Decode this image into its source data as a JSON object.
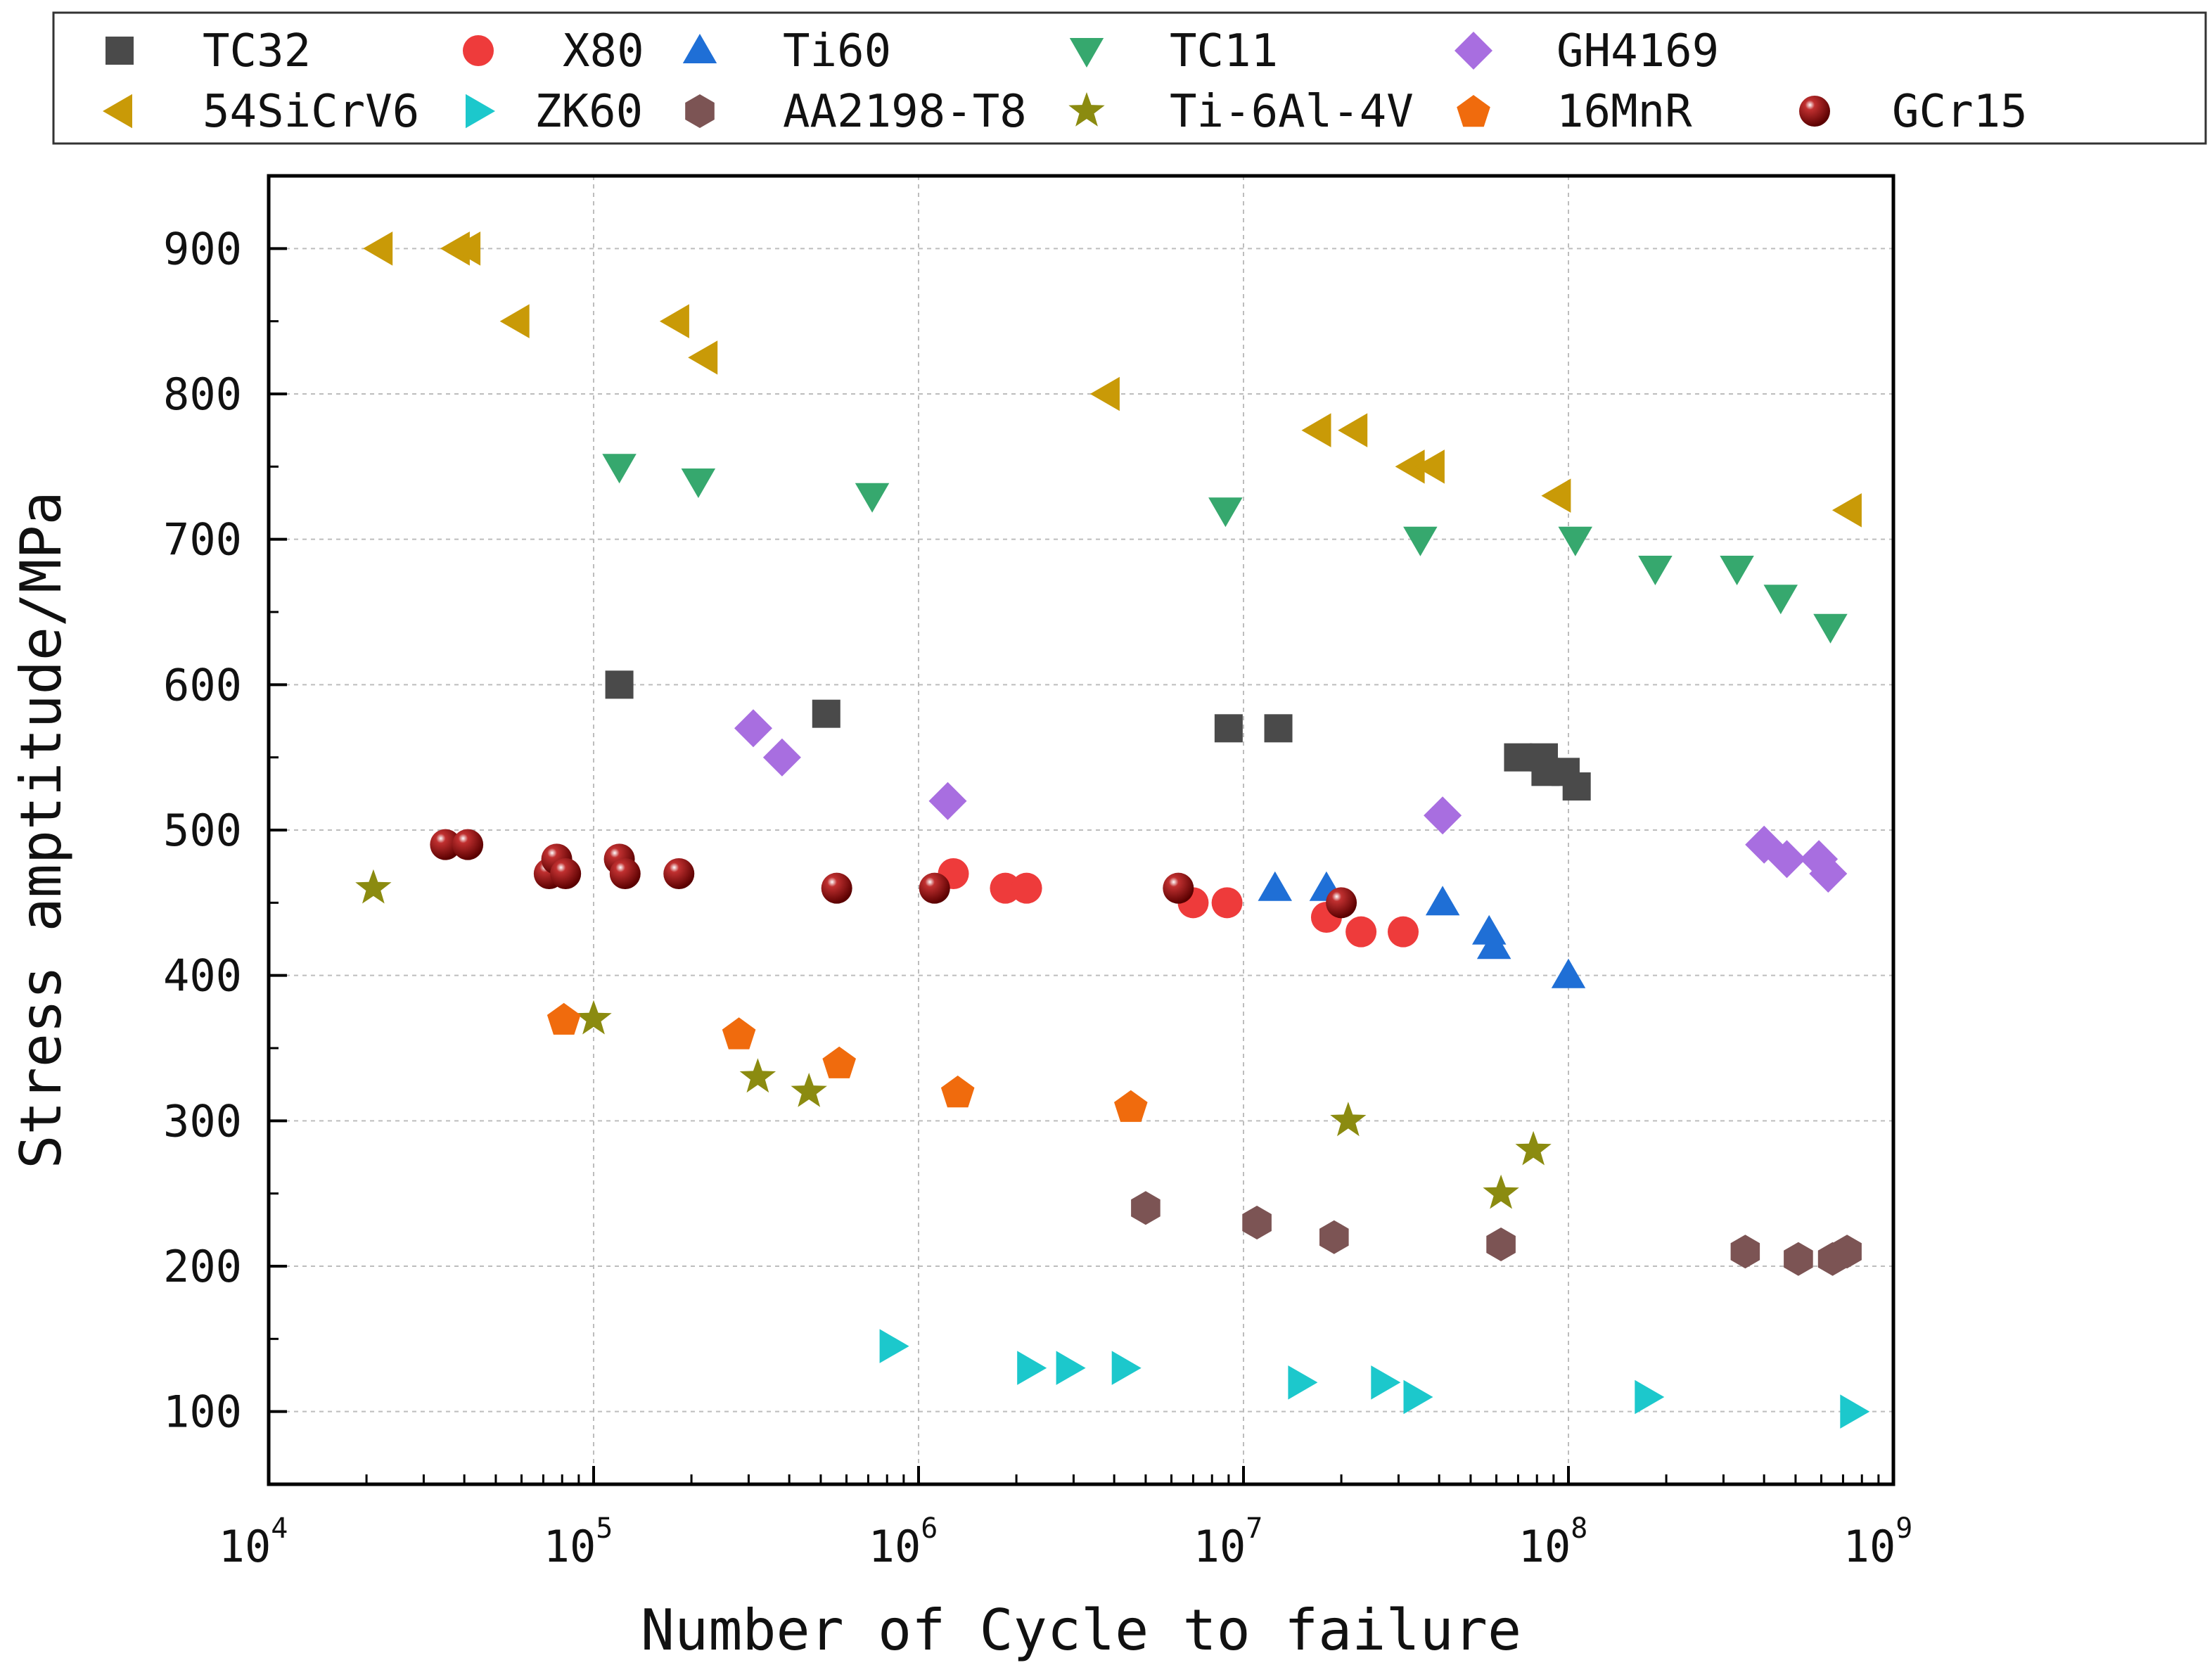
{
  "chart_data": {
    "type": "scatter",
    "xscale": "log",
    "xlim": [
      10000,
      1000000000
    ],
    "ylim": [
      50,
      950
    ],
    "xlabel": "Number of Cycle to failure",
    "ylabel": "Stress amptitude/MPa",
    "x_tick_labels": [
      {
        "base": "10",
        "exp": "4",
        "value": 10000
      },
      {
        "base": "10",
        "exp": "5",
        "value": 100000
      },
      {
        "base": "10",
        "exp": "6",
        "value": 1000000
      },
      {
        "base": "10",
        "exp": "7",
        "value": 10000000
      },
      {
        "base": "10",
        "exp": "8",
        "value": 100000000
      },
      {
        "base": "10",
        "exp": "9",
        "value": 1000000000
      }
    ],
    "y_ticks": [
      100,
      200,
      300,
      400,
      500,
      600,
      700,
      800,
      900
    ],
    "grid": true,
    "legend_position": "top, outside plot area",
    "series": [
      {
        "name": "TC32",
        "marker": "square",
        "color": "#4a4a4a",
        "x": [
          120000,
          520000,
          9000000,
          12800000,
          70000000,
          84000000,
          85000000,
          98000000,
          106000000
        ],
        "y": [
          600,
          580,
          570,
          570,
          550,
          550,
          540,
          540,
          530
        ]
      },
      {
        "name": "X80",
        "marker": "circle",
        "color": "#ee3b3b",
        "x": [
          1280000,
          1850000,
          2150000,
          7000000,
          8900000,
          18000000,
          23000000,
          31000000
        ],
        "y": [
          470,
          460,
          460,
          450,
          450,
          440,
          430,
          430
        ]
      },
      {
        "name": "Ti60",
        "marker": "triangle-up",
        "color": "#1f6fd6",
        "x": [
          12500000,
          18000000,
          41000000,
          57000000,
          59000000,
          100000000
        ],
        "y": [
          460,
          460,
          450,
          430,
          420,
          400
        ]
      },
      {
        "name": "TC11",
        "marker": "triangle-down",
        "color": "#36a86e",
        "x": [
          120000,
          210000,
          720000,
          8800000,
          35000000,
          105000000,
          185000000,
          330000000,
          450000000,
          640000000
        ],
        "y": [
          750,
          740,
          730,
          720,
          700,
          700,
          680,
          680,
          660,
          640
        ]
      },
      {
        "name": "GH4169",
        "marker": "diamond",
        "color": "#a86ee0",
        "x": [
          310000,
          380000,
          1230000,
          41000000,
          400000000,
          470000000,
          590000000,
          630000000
        ],
        "y": [
          570,
          550,
          520,
          510,
          490,
          480,
          480,
          470
        ]
      },
      {
        "name": "54SiCrV6",
        "marker": "triangle-left",
        "color": "#c99a07",
        "x": [
          22000,
          38000,
          41000,
          58000,
          180000,
          220000,
          3800000,
          17000000,
          22000000,
          33000000,
          38000000,
          93000000,
          730000000
        ],
        "y": [
          900,
          900,
          900,
          850,
          850,
          825,
          800,
          775,
          775,
          750,
          750,
          730,
          720
        ]
      },
      {
        "name": "ZK60",
        "marker": "triangle-right",
        "color": "#1cc8cc",
        "x": [
          830000,
          2200000,
          2900000,
          4300000,
          15000000,
          27000000,
          34000000,
          175000000,
          750000000
        ],
        "y": [
          145,
          130,
          130,
          130,
          120,
          120,
          110,
          110,
          100
        ]
      },
      {
        "name": "AA2198-T8",
        "marker": "hexagon",
        "color": "#7c5454",
        "x": [
          5000000,
          11000000,
          19000000,
          62000000,
          350000000,
          510000000,
          650000000,
          720000000
        ],
        "y": [
          240,
          230,
          220,
          215,
          210,
          205,
          205,
          210
        ]
      },
      {
        "name": "Ti-6Al-4V",
        "marker": "star",
        "color": "#8b8b10",
        "x": [
          21000,
          100000,
          320000,
          460000,
          21000000,
          62000000,
          78000000
        ],
        "y": [
          460,
          370,
          330,
          320,
          300,
          250,
          280
        ]
      },
      {
        "name": "16MnR",
        "marker": "pentagon",
        "color": "#f06b0d",
        "x": [
          81000,
          280000,
          570000,
          1320000,
          4500000
        ],
        "y": [
          370,
          360,
          340,
          320,
          310
        ]
      },
      {
        "name": "GCr15",
        "marker": "sphere",
        "color": "#850b0b",
        "x": [
          35000,
          41000,
          73000,
          77000,
          82000,
          120000,
          125000,
          183000,
          560000,
          1120000,
          6300000,
          20000000
        ],
        "y": [
          490,
          490,
          470,
          480,
          470,
          480,
          470,
          470,
          460,
          460,
          460,
          450
        ]
      }
    ]
  }
}
